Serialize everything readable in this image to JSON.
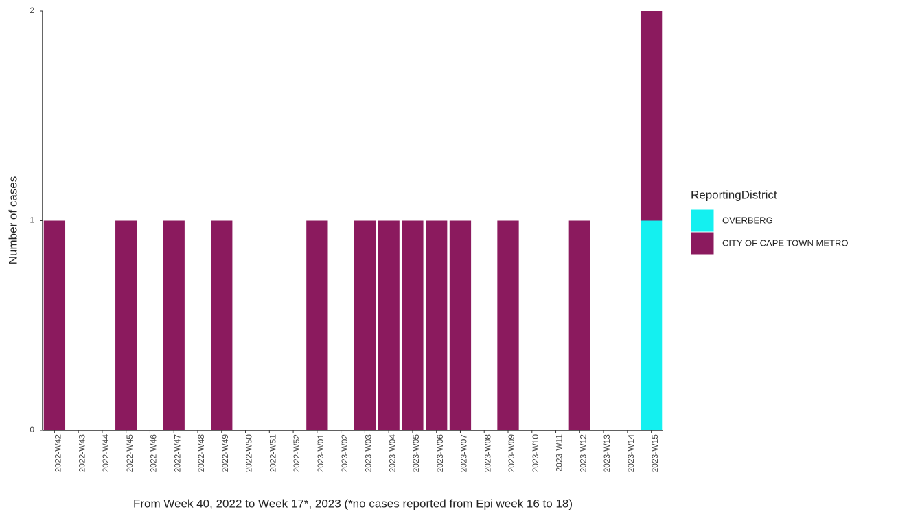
{
  "chart_data": {
    "type": "stacked_bar",
    "y_label": "Number of cases",
    "x_label": "From Week 40, 2022 to Week 17*, 2023 (*no cases reported from Epi week 16 to 18)",
    "legend_title": "ReportingDistrict",
    "legend_position": "right",
    "categories": [
      "2022-W42",
      "2022-W43",
      "2022-W44",
      "2022-W45",
      "2022-W46",
      "2022-W47",
      "2022-W48",
      "2022-W49",
      "2022-W50",
      "2022-W51",
      "2022-W52",
      "2023-W01",
      "2023-W02",
      "2023-W03",
      "2023-W04",
      "2023-W05",
      "2023-W06",
      "2023-W07",
      "2023-W08",
      "2023-W09",
      "2023-W10",
      "2023-W11",
      "2023-W12",
      "2023-W13",
      "2023-W14",
      "2023-W15"
    ],
    "series": [
      {
        "name": "OVERBERG",
        "color": "#14f0f0",
        "values": [
          0,
          0,
          0,
          0,
          0,
          0,
          0,
          0,
          0,
          0,
          0,
          0,
          0,
          0,
          0,
          0,
          0,
          0,
          0,
          0,
          0,
          0,
          0,
          0,
          0,
          1
        ]
      },
      {
        "name": "CITY OF CAPE TOWN METRO",
        "color": "#8b1a5e",
        "values": [
          1,
          0,
          0,
          1,
          0,
          1,
          0,
          1,
          0,
          0,
          0,
          1,
          0,
          1,
          1,
          1,
          1,
          1,
          0,
          1,
          0,
          0,
          1,
          0,
          0,
          1
        ]
      }
    ],
    "ylim": [
      0,
      2
    ],
    "yticks": [
      0,
      1,
      2
    ],
    "grid": false
  }
}
